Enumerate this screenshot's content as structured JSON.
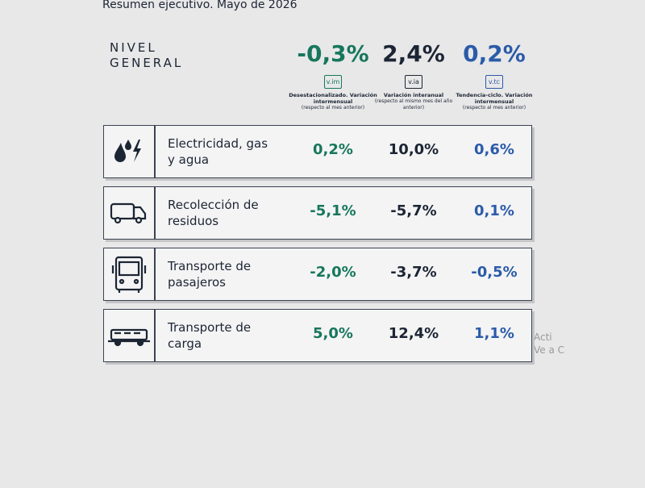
{
  "header": {
    "title": "Resumen ejecutivo. Mayo de 2026"
  },
  "summary": {
    "label": [
      "NIVEL",
      "GENERAL"
    ],
    "columns": [
      {
        "value": "-0,3%",
        "badge": "v.im",
        "description": "Desestacionalizado. Variación intermensual",
        "note": "(respecto al mes anterior)",
        "color": "#17775b"
      },
      {
        "value": "2,4%",
        "badge": "v.ia",
        "description": "Variación interanual",
        "note": "(respecto al mismo mes del año anterior)",
        "color": "#1c2533"
      },
      {
        "value": "0,2%",
        "badge": "v.tc",
        "description": "Tendencia-ciclo. Variación intermensual",
        "note": "(respecto al mes anterior)",
        "color": "#2b5ba8"
      }
    ]
  },
  "rows": [
    {
      "label": "Electricidad, gas y agua",
      "values": [
        "0,2%",
        "10,0%",
        "0,6%"
      ]
    },
    {
      "label": "Recolección de residuos",
      "values": [
        "-5,1%",
        "-5,7%",
        "0,1%"
      ]
    },
    {
      "label": "Transporte de pasajeros",
      "values": [
        "-2,0%",
        "-3,7%",
        "-0,5%"
      ]
    },
    {
      "label": "Transporte de carga",
      "values": [
        "5,0%",
        "12,4%",
        "1,1%"
      ]
    }
  ],
  "watermark": [
    "Acti",
    "Ve a C"
  ]
}
